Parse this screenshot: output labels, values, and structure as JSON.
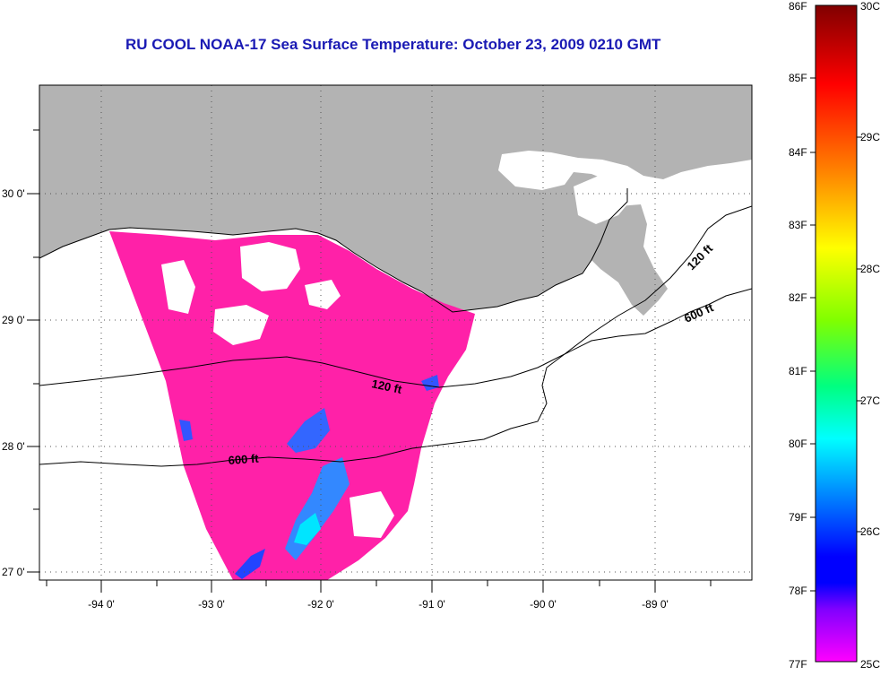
{
  "title": "RU COOL  NOAA-17  Sea Surface Temperature:  October 23, 2009 0210 GMT",
  "map": {
    "lon_ticks": [
      "-94 0'",
      "-93 0'",
      "-92 0'",
      "-91 0'",
      "-90 0'",
      "-89 0'"
    ],
    "lat_ticks": [
      "30 0'",
      "29 0'",
      "28 0'",
      "27 0'"
    ],
    "land_color": "#b3b3b3",
    "sst_color": "#ff21a8",
    "contours": [
      {
        "label": "120 ft"
      },
      {
        "label": "600 ft"
      },
      {
        "label": "120 ft"
      },
      {
        "label": "600 ft"
      }
    ]
  },
  "colorbar": {
    "fahrenheit": [
      "86F",
      "85F",
      "84F",
      "83F",
      "82F",
      "81F",
      "80F",
      "79F",
      "78F",
      "77F"
    ],
    "celsius": [
      "30C",
      "29C",
      "28C",
      "27C",
      "26C",
      "25C"
    ],
    "colors": [
      "#800000",
      "#ff0000",
      "#ff8000",
      "#ffff00",
      "#80ff00",
      "#00ff80",
      "#00ffff",
      "#0080ff",
      "#0000ff",
      "#8000ff",
      "#ff00ff"
    ]
  }
}
